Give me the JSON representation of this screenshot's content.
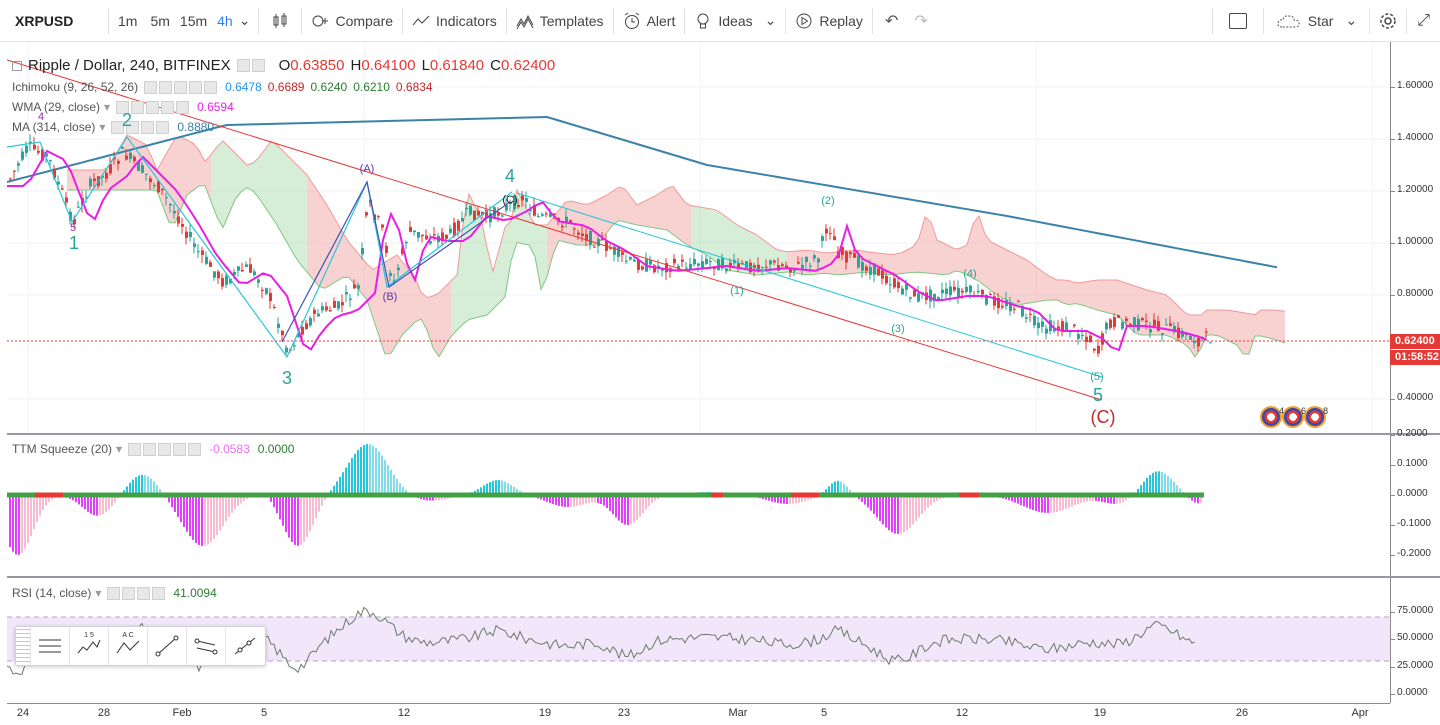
{
  "toolbar": {
    "symbol": "XRPUSD",
    "timeframes": [
      "1m",
      "5m",
      "15m",
      "4h"
    ],
    "active_timeframe": "4h",
    "compare": "Compare",
    "indicators": "Indicators",
    "templates": "Templates",
    "alert": "Alert",
    "ideas": "Ideas",
    "replay": "Replay",
    "star": "Star"
  },
  "main": {
    "title": "Ripple / Dollar, 240, BITFINEX",
    "ohlc": {
      "o_key": "O",
      "o": "0.63850",
      "h_key": "H",
      "h": "0.64100",
      "l_key": "L",
      "l": "0.61840",
      "c_key": "C",
      "c": "0.62400"
    },
    "ichimoku": {
      "label": "Ichimoku (9, 26, 52, 26)",
      "values": [
        "0.6478",
        "0.6689",
        "0.6240",
        "0.6210",
        "0.6834"
      ],
      "colors": [
        "#2196f3",
        "#c62828",
        "#2e7d32",
        "#2e7d32",
        "#c62828"
      ]
    },
    "wma": {
      "label": "WMA (29, close)",
      "value": "0.6594"
    },
    "ma": {
      "label": "MA (314, close)",
      "value": "0.8880"
    },
    "price_axis": [
      "1.60000",
      "1.40000",
      "1.20000",
      "1.00000",
      "0.80000",
      "0.62400",
      "0.40000"
    ],
    "price_axis_values": [
      1.6,
      1.4,
      1.2,
      1.0,
      0.8,
      0.4
    ],
    "current_price": "0.62400",
    "countdown": "01:58:52",
    "waves_major": [
      {
        "text": "1",
        "color": "#26a69a"
      },
      {
        "text": "2",
        "color": "#26a69a"
      },
      {
        "text": "3",
        "color": "#26a69a"
      },
      {
        "text": "4",
        "color": "#26a69a"
      },
      {
        "text": "5",
        "color": "#26a69a"
      },
      {
        "text": "(C)",
        "color": "#c62828"
      }
    ],
    "waves_minor": [
      {
        "text": "4",
        "color": "#9c27b0"
      },
      {
        "text": "5",
        "color": "#9c27b0"
      },
      {
        "text": "(A)",
        "color": "#5e35b1"
      },
      {
        "text": "(B)",
        "color": "#5e35b1"
      },
      {
        "text": "(C)",
        "color": "#222"
      },
      {
        "text": "(1)",
        "color": "#26a69a"
      },
      {
        "text": "(2)",
        "color": "#26a69a"
      },
      {
        "text": "(3)",
        "color": "#26a69a"
      },
      {
        "text": "(4)",
        "color": "#26a69a"
      },
      {
        "text": "(5)",
        "color": "#26a69a"
      }
    ],
    "events": [
      "4",
      "6",
      "8"
    ]
  },
  "squeeze": {
    "label": "TTM Squeeze (20)",
    "value1": "-0.0583",
    "value2": "0.0000",
    "axis": [
      "0.2000",
      "0.1000",
      "0.0000",
      "-0.1000",
      "-0.2000"
    ],
    "axis_values": [
      0.2,
      0.1,
      0.0,
      -0.1,
      -0.2
    ]
  },
  "rsi": {
    "label": "RSI (14, close)",
    "value": "41.0094",
    "axis": [
      "75.0000",
      "50.0000",
      "25.0000",
      "0.0000"
    ],
    "axis_values": [
      75,
      50,
      25,
      0
    ]
  },
  "time_axis": [
    "24",
    "28",
    "Feb",
    "5",
    "12",
    "19",
    "23",
    "Mar",
    "5",
    "12",
    "19",
    "26",
    "Apr"
  ],
  "draw_tools": [
    "horizontal-lines-icon",
    "elliott-wave-icon",
    "abc-pattern-icon",
    "trend-line-icon",
    "parallel-channel-icon",
    "ray-icon"
  ],
  "draw_tool_labels": [
    "1 5",
    "A C"
  ],
  "colors": {
    "up": "#26a69a",
    "down": "#e53935",
    "wma": "#e91ee6",
    "ma": "#3b82a8",
    "accent": "#2f80ed",
    "rsi_band": "#e9d5f7"
  }
}
